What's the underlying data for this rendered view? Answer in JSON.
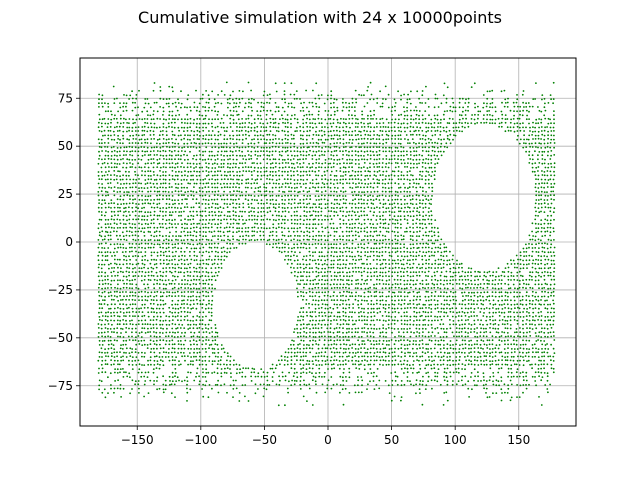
{
  "chart_data": {
    "type": "scatter",
    "title": "Cumulative simulation with 24 x 10000points",
    "xlabel": "",
    "ylabel": "",
    "xlim": [
      -195,
      195
    ],
    "ylim": [
      -96,
      96
    ],
    "grid": true,
    "marker_color": "#008000",
    "x_ticks": [
      -150,
      -100,
      -50,
      0,
      50,
      100,
      150
    ],
    "y_ticks": [
      -75,
      -50,
      -25,
      0,
      25,
      50,
      75
    ],
    "x_tick_labels": [
      "−150",
      "−100",
      "−50",
      "0",
      "50",
      "100",
      "150"
    ],
    "y_tick_labels": [
      "−75",
      "−50",
      "−25",
      "0",
      "25",
      "50",
      "75"
    ],
    "data_extent": {
      "x": [
        -180,
        180
      ],
      "y": [
        -90,
        90
      ]
    },
    "empty_regions": [
      {
        "shape": "ellipse",
        "center": [
          -57,
          -33
        ],
        "radius": [
          33,
          33
        ]
      },
      {
        "shape": "ellipse",
        "center": [
          123,
          23
        ],
        "radius": [
          40,
          38
        ]
      }
    ]
  }
}
